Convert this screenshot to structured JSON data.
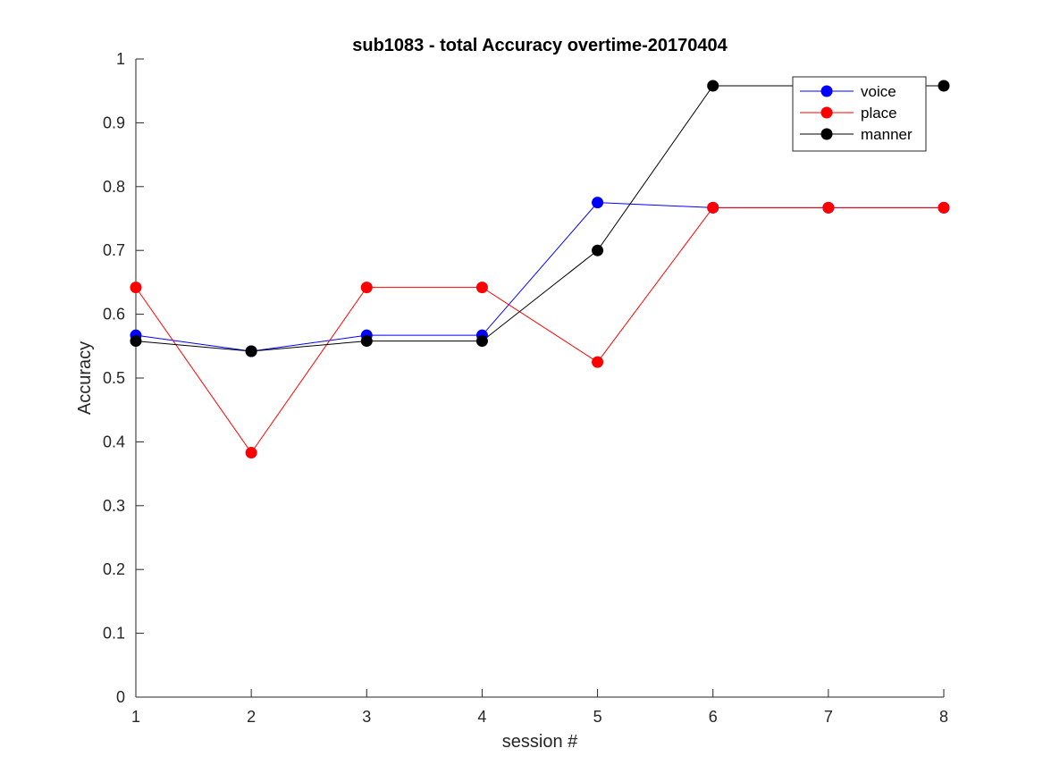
{
  "chart_data": {
    "type": "line",
    "title": "sub1083 - total Accuracy overtime-20170404",
    "xlabel": "session #",
    "ylabel": "Accuracy",
    "x": [
      1,
      2,
      3,
      4,
      5,
      6,
      7,
      8
    ],
    "xlim": [
      1,
      8
    ],
    "ylim": [
      0,
      1
    ],
    "xticks": [
      "1",
      "2",
      "3",
      "4",
      "5",
      "6",
      "7",
      "8"
    ],
    "yticks": [
      "0",
      "0.1",
      "0.2",
      "0.3",
      "0.4",
      "0.5",
      "0.6",
      "0.7",
      "0.8",
      "0.9",
      "1"
    ],
    "grid": false,
    "legend_position": "top-right",
    "series": [
      {
        "name": "voice",
        "color": "#0000ff",
        "values": [
          0.567,
          0.542,
          0.567,
          0.567,
          0.775,
          0.767,
          0.767,
          0.767
        ]
      },
      {
        "name": "place",
        "color": "#ff0000",
        "values": [
          0.642,
          0.383,
          0.642,
          0.642,
          0.525,
          0.767,
          0.767,
          0.767
        ]
      },
      {
        "name": "manner",
        "color": "#000000",
        "values": [
          0.558,
          0.542,
          0.558,
          0.558,
          0.7,
          0.958,
          0.958,
          0.958
        ]
      }
    ]
  }
}
